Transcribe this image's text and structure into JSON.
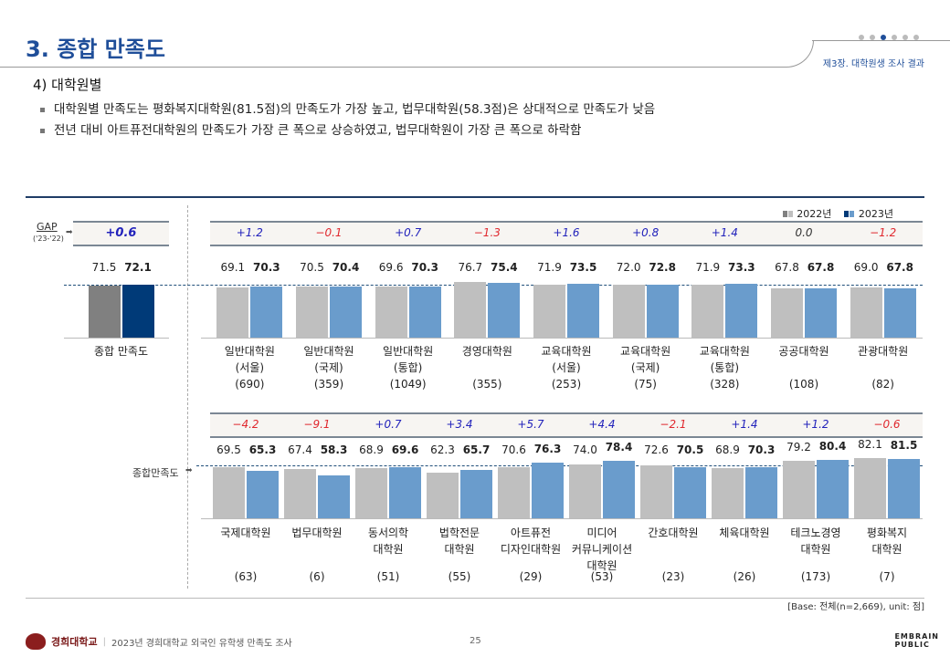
{
  "header": {
    "title": "3. 종합 만족도",
    "chapter": "제3장. 대학원생 조사 결과",
    "section": "4) 대학원별",
    "bullets": [
      "대학원별 만족도는 평화복지대학원(81.5점)의 만족도가 가장 높고, 법무대학원(58.3점)은 상대적으로 만족도가 낮음",
      "전년 대비 아트퓨전대학원의 만족도가 가장 큰 폭으로 상승하였고, 법무대학원이 가장 큰 폭으로 하락함"
    ]
  },
  "labels": {
    "gap": "GAP",
    "gap_sub": "('23-'22)",
    "overall_ref": "종합만족도",
    "base_note": "[Base: 전체(n=2,669), unit: 점]"
  },
  "footer": {
    "university": "경희대학교",
    "survey": "2023년 경희대학교 외국인 유학생 만족도 조사",
    "page": "25",
    "brand": "EMBRAIN PUBLIC"
  },
  "colors": {
    "y2022": "#bfbfbf",
    "y2023": "#6a9ccc",
    "y2022_total": "#808080",
    "y2023_total": "#003a78",
    "pos": "#2222bb",
    "neg": "#e0282e",
    "title": "#1f4e99"
  },
  "chart_data": [
    {
      "type": "bar",
      "title": "",
      "legend": [
        "2022년",
        "2023년"
      ],
      "legend_position": "top-right",
      "reference_line": 72.1,
      "categories": [
        "종합 만족도"
      ],
      "sub": [
        ""
      ],
      "n": [
        ""
      ],
      "series": [
        {
          "name": "2022년",
          "values": [
            71.5
          ]
        },
        {
          "name": "2023년",
          "values": [
            72.1
          ]
        }
      ],
      "gap": [
        "+0.6"
      ]
    },
    {
      "type": "bar",
      "categories": [
        "일반대학원",
        "일반대학원",
        "일반대학원",
        "경영대학원",
        "교육대학원",
        "교육대학원",
        "교육대학원",
        "공공대학원",
        "관광대학원"
      ],
      "sub": [
        "(서울)",
        "(국제)",
        "(통합)",
        "",
        "(서울)",
        "(국제)",
        "(통합)",
        "",
        ""
      ],
      "n": [
        "(690)",
        "(359)",
        "(1049)",
        "(355)",
        "(253)",
        "(75)",
        "(328)",
        "(108)",
        "(82)"
      ],
      "series": [
        {
          "name": "2022년",
          "values": [
            69.1,
            70.5,
            69.6,
            76.7,
            71.9,
            72.0,
            71.9,
            67.8,
            69.0
          ]
        },
        {
          "name": "2023년",
          "values": [
            70.3,
            70.4,
            70.3,
            75.4,
            73.5,
            72.8,
            73.3,
            67.8,
            67.8
          ]
        }
      ],
      "gap": [
        "+1.2",
        "-0.1",
        "+0.7",
        "-1.3",
        "+1.6",
        "+0.8",
        "+1.4",
        "0.0",
        "-1.2"
      ]
    },
    {
      "type": "bar",
      "categories": [
        "국제대학원",
        "법무대학원",
        "동서의학",
        "법학전문",
        "아트퓨전",
        "미디어",
        "간호대학원",
        "체육대학원",
        "테크노경영",
        "평화복지"
      ],
      "sub": [
        "",
        "",
        "대학원",
        "대학원",
        "디자인대학원",
        "커뮤니케이션",
        "",
        "",
        "대학원",
        "대학원"
      ],
      "sub2": [
        "",
        "",
        "",
        "",
        "",
        "대학원",
        "",
        "",
        "",
        ""
      ],
      "n": [
        "(63)",
        "(6)",
        "(51)",
        "(55)",
        "(29)",
        "(53)",
        "(23)",
        "(26)",
        "(173)",
        "(7)"
      ],
      "series": [
        {
          "name": "2022년",
          "values": [
            69.5,
            67.4,
            68.9,
            62.3,
            70.6,
            74.0,
            72.6,
            68.9,
            79.2,
            82.1
          ]
        },
        {
          "name": "2023년",
          "values": [
            65.3,
            58.3,
            69.6,
            65.7,
            76.3,
            78.4,
            70.5,
            70.3,
            80.4,
            81.5
          ]
        }
      ],
      "gap": [
        "-4.2",
        "-9.1",
        "+0.7",
        "+3.4",
        "+5.7",
        "+4.4",
        "-2.1",
        "+1.4",
        "+1.2",
        "-0.6"
      ]
    }
  ]
}
